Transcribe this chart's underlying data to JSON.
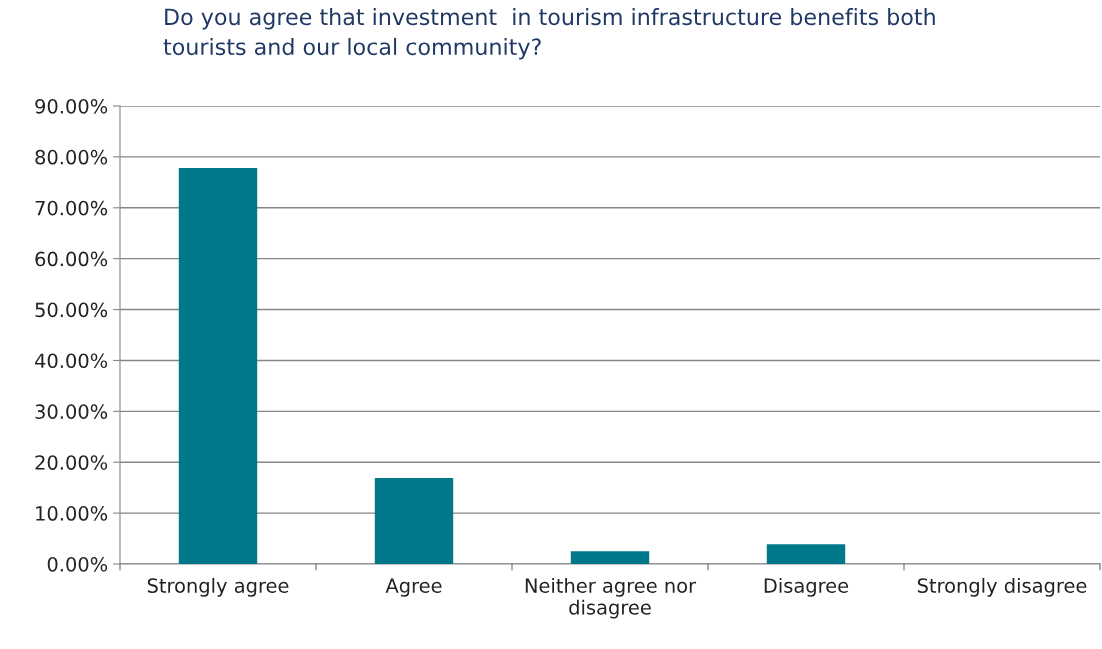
{
  "chart_data": {
    "type": "bar",
    "title": "Do you agree that investment  in tourism infrastructure benefits both\ntourists and our local community?",
    "categories": [
      "Strongly agree",
      "Agree",
      "Neither agree nor\ndisagree",
      "Disagree",
      "Strongly disagree"
    ],
    "values": [
      77.8,
      16.9,
      2.5,
      3.9,
      0
    ],
    "color": "#00788a",
    "ylim": [
      0,
      90
    ],
    "yticks": [
      {
        "value": 0,
        "label": "0.00%"
      },
      {
        "value": 10,
        "label": "10.00%"
      },
      {
        "value": 20,
        "label": "20.00%"
      },
      {
        "value": 30,
        "label": "30.00%"
      },
      {
        "value": 40,
        "label": "40.00%"
      },
      {
        "value": 50,
        "label": "50.00%"
      },
      {
        "value": 60,
        "label": "60.00%"
      },
      {
        "value": 70,
        "label": "70.00%"
      },
      {
        "value": 80,
        "label": "80.00%"
      },
      {
        "value": 90,
        "label": "90.00%"
      }
    ],
    "grid": "y",
    "legend": false
  }
}
